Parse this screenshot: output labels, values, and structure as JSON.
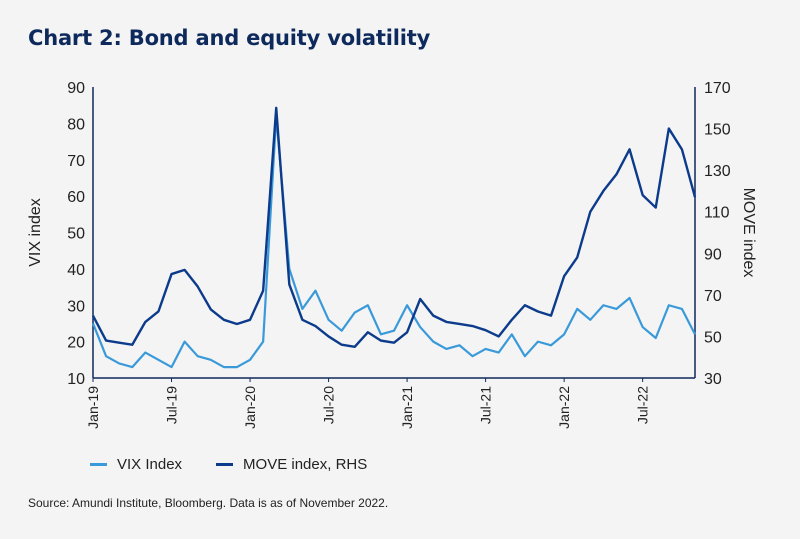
{
  "title": "Chart 2: Bond and equity volatility",
  "source": "Source: Amundi Institute, Bloomberg. Data is as of November 2022.",
  "chart_data": {
    "type": "line",
    "title": "Chart 2: Bond and equity volatility",
    "ylabel": "VIX index",
    "y2label": "MOVE index",
    "ylim": [
      10,
      90
    ],
    "y2lim": [
      30,
      170
    ],
    "yticks": [
      10,
      20,
      30,
      40,
      50,
      60,
      70,
      80,
      90
    ],
    "y2ticks": [
      30,
      50,
      70,
      90,
      110,
      130,
      150,
      170
    ],
    "xlim": [
      "2019-01",
      "2022-11"
    ],
    "xticks": [
      "Jan-19",
      "Jul-19",
      "Jan-20",
      "Jul-20",
      "Jan-21",
      "Jul-21",
      "Jan-22",
      "Jul-22"
    ],
    "x": [
      "2019-01",
      "2019-02",
      "2019-03",
      "2019-04",
      "2019-05",
      "2019-06",
      "2019-07",
      "2019-08",
      "2019-09",
      "2019-10",
      "2019-11",
      "2019-12",
      "2020-01",
      "2020-02",
      "2020-03",
      "2020-04",
      "2020-05",
      "2020-06",
      "2020-07",
      "2020-08",
      "2020-09",
      "2020-10",
      "2020-11",
      "2020-12",
      "2021-01",
      "2021-02",
      "2021-03",
      "2021-04",
      "2021-05",
      "2021-06",
      "2021-07",
      "2021-08",
      "2021-09",
      "2021-10",
      "2021-11",
      "2021-12",
      "2022-01",
      "2022-02",
      "2022-03",
      "2022-04",
      "2022-05",
      "2022-06",
      "2022-07",
      "2022-08",
      "2022-09",
      "2022-10",
      "2022-11"
    ],
    "series": [
      {
        "name": "VIX Index",
        "axis": "left",
        "color": "#3a9ad9",
        "values": [
          25,
          16,
          14,
          13,
          17,
          15,
          13,
          20,
          16,
          15,
          13,
          13,
          15,
          20,
          82,
          40,
          29,
          34,
          26,
          23,
          28,
          30,
          22,
          23,
          30,
          24,
          20,
          18,
          19,
          16,
          18,
          17,
          22,
          16,
          20,
          19,
          22,
          29,
          26,
          30,
          29,
          32,
          24,
          21,
          30,
          29,
          22
        ]
      },
      {
        "name": "MOVE index, RHS",
        "axis": "right",
        "color": "#0c3b8c",
        "values": [
          60,
          48,
          47,
          46,
          57,
          62,
          80,
          82,
          74,
          63,
          58,
          56,
          58,
          72,
          160,
          75,
          58,
          55,
          50,
          46,
          45,
          52,
          48,
          47,
          52,
          68,
          60,
          57,
          56,
          55,
          53,
          50,
          58,
          65,
          62,
          60,
          79,
          88,
          110,
          120,
          128,
          140,
          118,
          112,
          150,
          140,
          117
        ]
      }
    ],
    "legend": "bottom-left",
    "grid": false
  },
  "legend": {
    "vix": "VIX Index",
    "move": "MOVE index, RHS"
  }
}
